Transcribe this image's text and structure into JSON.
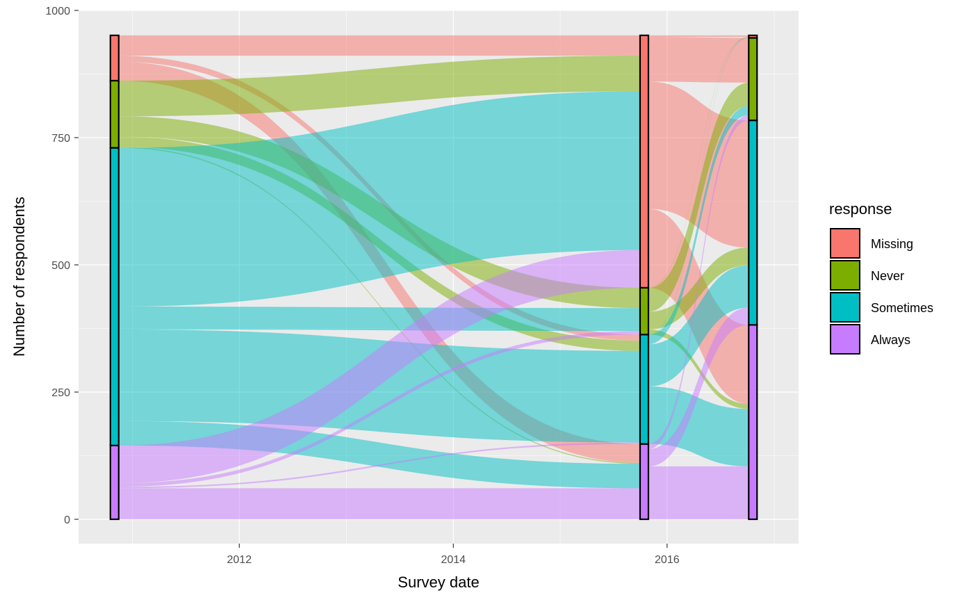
{
  "chart_data": {
    "type": "alluvial",
    "xlabel": "Survey date",
    "ylabel": "Number of respondents",
    "x_ticks": [
      "2012",
      "2014",
      "2016"
    ],
    "y_ticks": [
      "0",
      "250",
      "500",
      "750",
      "1000"
    ],
    "ylim": [
      0,
      1000
    ],
    "xlim": [
      "2010-07-01",
      "2017-03-25"
    ],
    "legend": {
      "title": "response",
      "position": "right",
      "entries": [
        {
          "label": "Missing",
          "color": "#F8766D"
        },
        {
          "label": "Never",
          "color": "#7CAE00"
        },
        {
          "label": "Sometimes",
          "color": "#00BFC4"
        },
        {
          "label": "Always",
          "color": "#C77CFF"
        }
      ]
    },
    "axes": [
      {
        "date": "2010-11-01",
        "strata": [
          {
            "response": "Always",
            "count": 145
          },
          {
            "response": "Sometimes",
            "count": 585
          },
          {
            "response": "Never",
            "count": 132
          },
          {
            "response": "Missing",
            "count": 89
          }
        ]
      },
      {
        "date": "2015-10-15",
        "strata": [
          {
            "response": "Always",
            "count": 148
          },
          {
            "response": "Sometimes",
            "count": 215
          },
          {
            "response": "Never",
            "count": 92
          },
          {
            "response": "Missing",
            "count": 496
          }
        ]
      },
      {
        "date": "2016-10-20",
        "strata": [
          {
            "response": "Always",
            "count": 382
          },
          {
            "response": "Sometimes",
            "count": 402
          },
          {
            "response": "Never",
            "count": 162
          },
          {
            "response": "Missing",
            "count": 5
          }
        ]
      }
    ],
    "flows_1_to_2": [
      {
        "from": "Missing",
        "to": "Missing",
        "count": 40
      },
      {
        "from": "Missing",
        "to": "Sometimes",
        "count": 12
      },
      {
        "from": "Missing",
        "to": "Always",
        "count": 37
      },
      {
        "from": "Never",
        "to": "Missing",
        "count": 70
      },
      {
        "from": "Never",
        "to": "Never",
        "count": 40
      },
      {
        "from": "Never",
        "to": "Sometimes",
        "count": 20
      },
      {
        "from": "Never",
        "to": "Always",
        "count": 2
      },
      {
        "from": "Sometimes",
        "to": "Missing",
        "count": 312
      },
      {
        "from": "Sometimes",
        "to": "Never",
        "count": 45
      },
      {
        "from": "Sometimes",
        "to": "Sometimes",
        "count": 180
      },
      {
        "from": "Sometimes",
        "to": "Always",
        "count": 48
      },
      {
        "from": "Always",
        "to": "Missing",
        "count": 74
      },
      {
        "from": "Always",
        "to": "Never",
        "count": 7
      },
      {
        "from": "Always",
        "to": "Sometimes",
        "count": 3
      },
      {
        "from": "Always",
        "to": "Always",
        "count": 61
      }
    ],
    "flows_2_to_3": [
      {
        "from": "Missing",
        "to": "Missing",
        "count": 3
      },
      {
        "from": "Missing",
        "to": "Never",
        "count": 88
      },
      {
        "from": "Missing",
        "to": "Sometimes",
        "count": 250
      },
      {
        "from": "Missing",
        "to": "Always",
        "count": 155
      },
      {
        "from": "Never",
        "to": "Missing",
        "count": 1
      },
      {
        "from": "Never",
        "to": "Never",
        "count": 46
      },
      {
        "from": "Never",
        "to": "Sometimes",
        "count": 35
      },
      {
        "from": "Never",
        "to": "Always",
        "count": 10
      },
      {
        "from": "Sometimes",
        "to": "Missing",
        "count": 1
      },
      {
        "from": "Sometimes",
        "to": "Never",
        "count": 18
      },
      {
        "from": "Sometimes",
        "to": "Sometimes",
        "count": 83
      },
      {
        "from": "Sometimes",
        "to": "Always",
        "count": 113
      },
      {
        "from": "Always",
        "to": "Never",
        "count": 10
      },
      {
        "from": "Always",
        "to": "Sometimes",
        "count": 34
      },
      {
        "from": "Always",
        "to": "Always",
        "count": 104
      }
    ]
  }
}
